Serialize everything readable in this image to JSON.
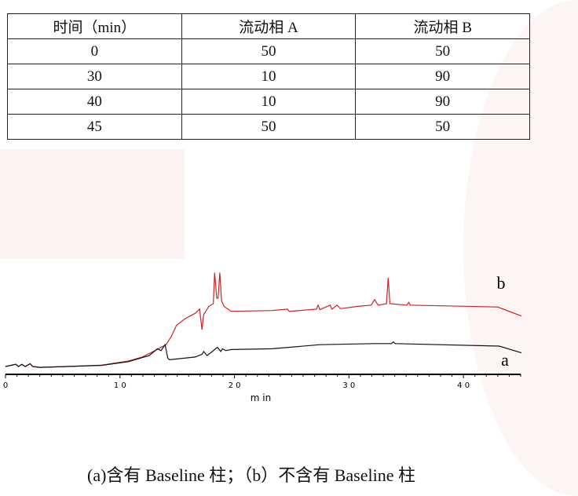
{
  "table": {
    "headers": [
      "时间（min）",
      "流动相 A",
      "流动相 B"
    ],
    "rows": [
      [
        "0",
        "50",
        "50"
      ],
      [
        "30",
        "10",
        "90"
      ],
      [
        "40",
        "10",
        "90"
      ],
      [
        "45",
        "50",
        "50"
      ]
    ]
  },
  "chart_data": {
    "type": "line",
    "xlabel": "m  in",
    "xlim": [
      0,
      45
    ],
    "x_ticks": [
      0,
      10,
      20,
      30,
      40
    ],
    "x_tick_labels": [
      "0",
      "1 0",
      "2 0",
      "3 0",
      "4 0"
    ],
    "y_axis_shown": false,
    "grid": false,
    "series": [
      {
        "name": "b",
        "color": "#d42020",
        "points": [
          [
            0,
            0
          ],
          [
            0.9,
            2.3
          ],
          [
            1.13,
            0
          ],
          [
            1.43,
            2.3
          ],
          [
            1.73,
            0
          ],
          [
            2.15,
            2.9
          ],
          [
            2.39,
            0
          ],
          [
            2.99,
            -0.9
          ],
          [
            5.37,
            0
          ],
          [
            8.36,
            1.4
          ],
          [
            10.75,
            5.8
          ],
          [
            11.94,
            10.1
          ],
          [
            13.13,
            17.4
          ],
          [
            14.03,
            23.2
          ],
          [
            14.48,
            31.9
          ],
          [
            14.93,
            43.5
          ],
          [
            15.67,
            50.7
          ],
          [
            16.57,
            56.5
          ],
          [
            16.96,
            60.9
          ],
          [
            17.16,
            39.1
          ],
          [
            17.31,
            55.1
          ],
          [
            17.76,
            63.8
          ],
          [
            18.15,
            66.7
          ],
          [
            18.27,
            99.7
          ],
          [
            18.45,
            72.5
          ],
          [
            18.57,
            72.5
          ],
          [
            18.72,
            99.7
          ],
          [
            18.87,
            69.6
          ],
          [
            19.1,
            63.8
          ],
          [
            19.7,
            58.6
          ],
          [
            23.28,
            59.4
          ],
          [
            24.63,
            60.9
          ],
          [
            24.78,
            58.6
          ],
          [
            27.16,
            60.9
          ],
          [
            27.31,
            65.2
          ],
          [
            27.46,
            60.3
          ],
          [
            28.36,
            65.2
          ],
          [
            28.51,
            60.9
          ],
          [
            28.96,
            65.2
          ],
          [
            29.25,
            61.4
          ],
          [
            30.75,
            63.8
          ],
          [
            31.94,
            65.2
          ],
          [
            32.24,
            71.0
          ],
          [
            32.54,
            65.2
          ],
          [
            33.28,
            66.7
          ],
          [
            33.43,
            94.2
          ],
          [
            33.58,
            66.7
          ],
          [
            35.07,
            65.2
          ],
          [
            35.22,
            68.1
          ],
          [
            35.37,
            65.2
          ],
          [
            42.99,
            63.2
          ],
          [
            45.07,
            53.6
          ]
        ]
      },
      {
        "name": "a",
        "color": "#111111",
        "points": [
          [
            0,
            0
          ],
          [
            0.9,
            2.3
          ],
          [
            1.13,
            0
          ],
          [
            1.43,
            2.3
          ],
          [
            1.73,
            0
          ],
          [
            2.15,
            2.9
          ],
          [
            2.39,
            0
          ],
          [
            2.99,
            -0.9
          ],
          [
            5.37,
            0
          ],
          [
            8.36,
            1.2
          ],
          [
            10.75,
            5.2
          ],
          [
            12.54,
            11.6
          ],
          [
            13.28,
            18.8
          ],
          [
            13.58,
            16.8
          ],
          [
            13.94,
            23.2
          ],
          [
            14.18,
            8.7
          ],
          [
            14.33,
            7.2
          ],
          [
            16.57,
            10.1
          ],
          [
            17.16,
            13.0
          ],
          [
            17.31,
            15.9
          ],
          [
            17.61,
            11.6
          ],
          [
            18.51,
            20.3
          ],
          [
            18.81,
            15.9
          ],
          [
            18.96,
            18.8
          ],
          [
            19.25,
            16.8
          ],
          [
            19.7,
            18.0
          ],
          [
            23.28,
            18.8
          ],
          [
            27.46,
            23.2
          ],
          [
            32.24,
            24.3
          ],
          [
            33.73,
            24.3
          ],
          [
            33.88,
            26.1
          ],
          [
            34.03,
            24.3
          ],
          [
            43.13,
            21.7
          ],
          [
            45.07,
            14.5
          ]
        ]
      }
    ]
  },
  "caption": "(a)含有 Baseline 柱；（b）不含有 Baseline 柱"
}
